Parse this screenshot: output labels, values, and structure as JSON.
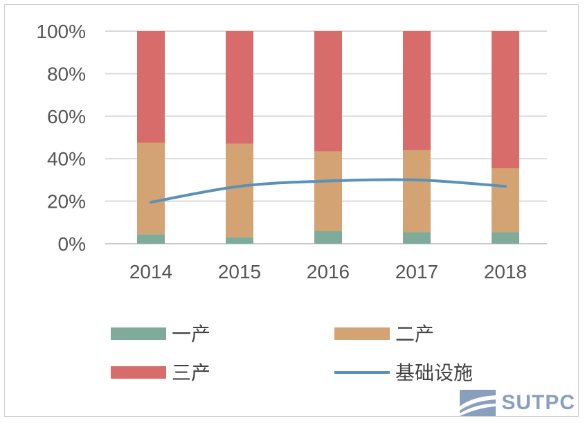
{
  "chart_data": {
    "type": "bar",
    "stacked": true,
    "categories": [
      "2014",
      "2015",
      "2016",
      "2017",
      "2018"
    ],
    "series": [
      {
        "name": "一产",
        "type": "bar",
        "color": "#7fab9b",
        "values": [
          4.5,
          3.0,
          6.0,
          5.5,
          5.5
        ]
      },
      {
        "name": "二产",
        "type": "bar",
        "color": "#d3a373",
        "values": [
          43.0,
          44.0,
          37.5,
          38.5,
          30.0
        ]
      },
      {
        "name": "三产",
        "type": "bar",
        "color": "#d76c6a",
        "values": [
          52.5,
          53.0,
          56.5,
          56.0,
          64.5
        ]
      },
      {
        "name": "基础设施",
        "type": "line",
        "color": "#5b91b8",
        "values": [
          19.5,
          27.0,
          29.5,
          30.0,
          27.0
        ]
      }
    ],
    "y_ticks": [
      "0%",
      "20%",
      "40%",
      "60%",
      "80%",
      "100%"
    ],
    "ylim": [
      0,
      100
    ],
    "grid": true,
    "legend_position": "bottom"
  },
  "watermark": {
    "text": "SUTPC"
  }
}
